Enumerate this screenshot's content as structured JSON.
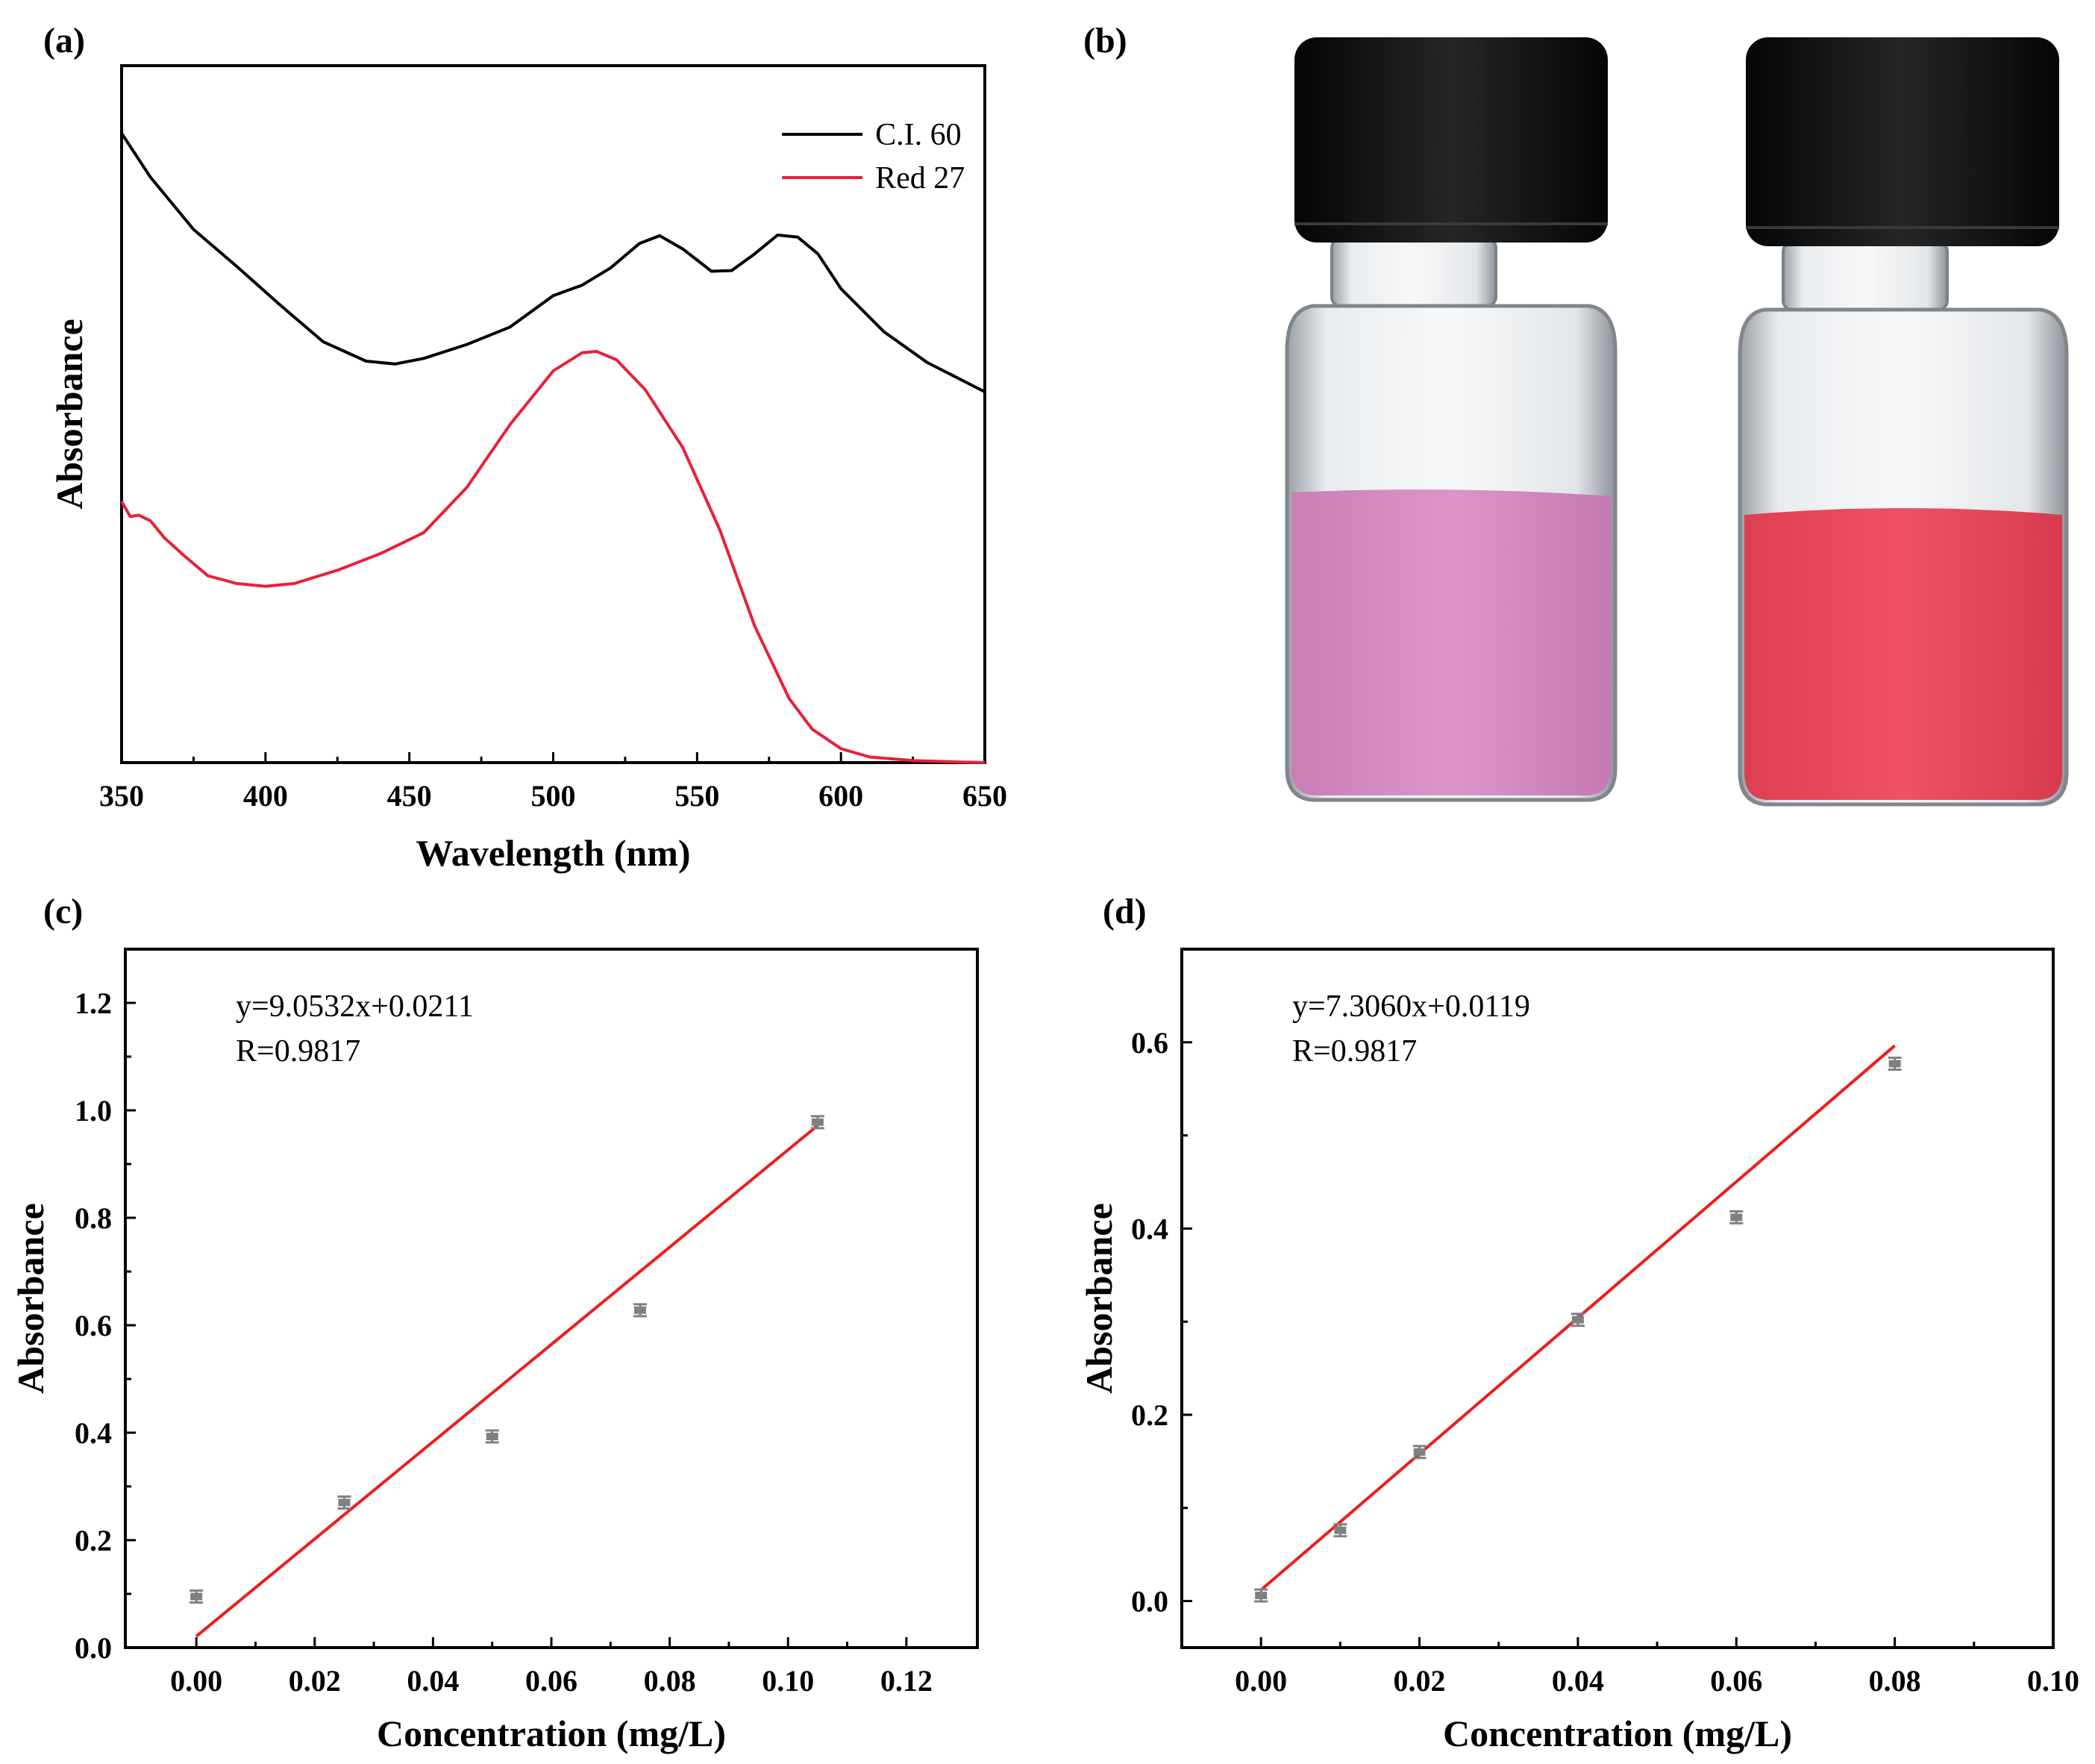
{
  "figure": {
    "panels": {
      "a": "(a)",
      "b": "(b)",
      "c": "(c)",
      "d": "(d)"
    }
  },
  "colors": {
    "black_series": "#000000",
    "red_series": "#e8203a",
    "fit_line": "#ee1c1c",
    "points": "#808080",
    "pink_liquid": "#d98fc6",
    "red_liquid": "#ea4a5c",
    "cap": "#111111"
  },
  "photo": {
    "description_icon": "vial-icon"
  },
  "chart_data": [
    {
      "id": "a",
      "type": "line",
      "title": "",
      "xlabel": "Wavelength (nm)",
      "ylabel": "Absorbance",
      "xlim": [
        350,
        650
      ],
      "ylim": [
        0,
        1
      ],
      "xticks": [
        350,
        400,
        450,
        500,
        550,
        600,
        650
      ],
      "legend": {
        "placement": "top-right"
      },
      "series": [
        {
          "name": "C.I. 60",
          "color": "#000000",
          "x": [
            350,
            360,
            375,
            390,
            405,
            420,
            435,
            445,
            455,
            470,
            485,
            500,
            510,
            520,
            530,
            537,
            545,
            555,
            562,
            570,
            578,
            585,
            592,
            600,
            615,
            630,
            650
          ],
          "y": [
            0.903,
            0.84,
            0.765,
            0.712,
            0.657,
            0.604,
            0.576,
            0.572,
            0.58,
            0.6,
            0.625,
            0.67,
            0.685,
            0.71,
            0.745,
            0.756,
            0.737,
            0.705,
            0.706,
            0.73,
            0.757,
            0.754,
            0.73,
            0.68,
            0.618,
            0.574,
            0.532
          ]
        },
        {
          "name": "Red 27",
          "color": "#e8203a",
          "x": [
            350,
            353,
            356,
            360,
            365,
            372,
            380,
            390,
            400,
            410,
            425,
            440,
            455,
            470,
            485,
            500,
            510,
            515,
            522,
            532,
            545,
            558,
            570,
            582,
            590,
            600,
            610,
            625,
            640,
            650
          ],
          "y": [
            0.375,
            0.353,
            0.355,
            0.347,
            0.322,
            0.296,
            0.268,
            0.257,
            0.253,
            0.257,
            0.276,
            0.3,
            0.33,
            0.395,
            0.485,
            0.562,
            0.588,
            0.59,
            0.578,
            0.535,
            0.452,
            0.333,
            0.196,
            0.092,
            0.048,
            0.02,
            0.008,
            0.003,
            0.001,
            0.0
          ]
        }
      ]
    },
    {
      "id": "c",
      "type": "scatter",
      "title": "",
      "xlabel": "Concentration (mg/L)",
      "ylabel": "Absorbance",
      "xlim": [
        -0.012,
        0.132
      ],
      "ylim": [
        0.0,
        1.3
      ],
      "xticks": [
        0.0,
        0.02,
        0.04,
        0.06,
        0.08,
        0.1,
        0.12
      ],
      "xtick_labels": [
        "0.00",
        "0.02",
        "0.04",
        "0.06",
        "0.08",
        "0.10",
        "0.12"
      ],
      "yticks": [
        0.0,
        0.2,
        0.4,
        0.6,
        0.8,
        1.0,
        1.2
      ],
      "ytick_labels": [
        "0.0",
        "0.2",
        "0.4",
        "0.6",
        "0.8",
        "1.0",
        "1.2"
      ],
      "points": {
        "x": [
          0.0,
          0.025,
          0.05,
          0.075,
          0.105
        ],
        "y": [
          0.095,
          0.27,
          0.393,
          0.628,
          0.978
        ]
      },
      "fit": {
        "slope": 9.0532,
        "intercept": 0.0211,
        "x_range": [
          0.0,
          0.105
        ]
      },
      "annotations": [
        "y=9.0532x+0.0211",
        "R=0.9817"
      ]
    },
    {
      "id": "d",
      "type": "scatter",
      "title": "",
      "xlabel": "Concentration (mg/L)",
      "ylabel": "Absorbance",
      "xlim": [
        -0.01,
        0.1
      ],
      "ylim": [
        -0.05,
        0.7
      ],
      "xticks": [
        0.0,
        0.02,
        0.04,
        0.06,
        0.08,
        0.1
      ],
      "xtick_labels": [
        "0.00",
        "0.02",
        "0.04",
        "0.06",
        "0.08",
        "0.10"
      ],
      "yticks": [
        0.0,
        0.2,
        0.4,
        0.6
      ],
      "ytick_labels": [
        "0.0",
        "0.2",
        "0.4",
        "0.6"
      ],
      "points": {
        "x": [
          0.0,
          0.01,
          0.02,
          0.04,
          0.06,
          0.08
        ],
        "y": [
          0.006,
          0.076,
          0.16,
          0.302,
          0.412,
          0.577
        ]
      },
      "fit": {
        "slope": 7.306,
        "intercept": 0.0119,
        "x_range": [
          0.0,
          0.08
        ]
      },
      "annotations": [
        "y=7.3060x+0.0119",
        "R=0.9817"
      ]
    }
  ]
}
